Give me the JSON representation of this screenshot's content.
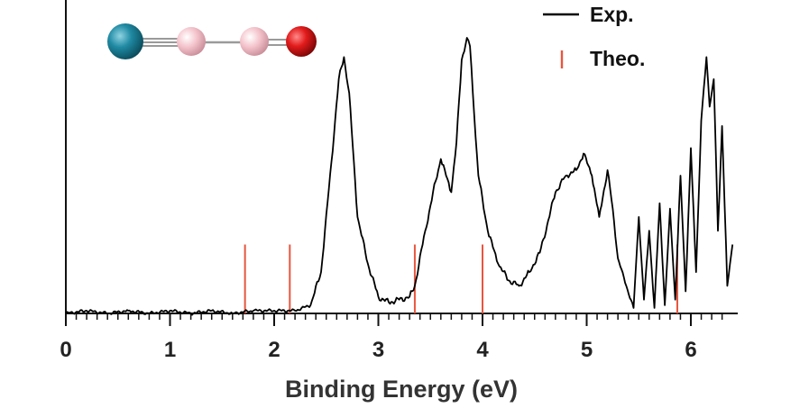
{
  "chart_data": {
    "type": "line",
    "xlabel": "Binding Energy (eV)",
    "ylabel": "",
    "xlim": [
      0,
      6.4
    ],
    "x_ticks": [
      "0",
      "1",
      "2",
      "3",
      "4",
      "5",
      "6"
    ],
    "grid": false,
    "legend_position": "top-right",
    "legend": [
      {
        "label": "Exp.",
        "marker": "line",
        "color": "#000000"
      },
      {
        "label": "Theo.",
        "marker": "stick",
        "color": "#e8553e"
      }
    ],
    "series": [
      {
        "name": "Exp.",
        "color": "#000000",
        "x": [
          0.0,
          0.2,
          0.4,
          0.6,
          0.8,
          1.0,
          1.2,
          1.4,
          1.6,
          1.8,
          2.0,
          2.2,
          2.35,
          2.45,
          2.55,
          2.62,
          2.67,
          2.72,
          2.8,
          2.9,
          3.0,
          3.1,
          3.2,
          3.3,
          3.35,
          3.45,
          3.55,
          3.6,
          3.65,
          3.7,
          3.75,
          3.8,
          3.85,
          3.88,
          3.92,
          3.96,
          4.05,
          4.15,
          4.25,
          4.35,
          4.45,
          4.55,
          4.62,
          4.7,
          4.8,
          4.9,
          4.97,
          5.05,
          5.12,
          5.2,
          5.25,
          5.3,
          5.38,
          5.45,
          5.5,
          5.55,
          5.6,
          5.65,
          5.7,
          5.75,
          5.8,
          5.85,
          5.9,
          5.95,
          6.0,
          6.05,
          6.1,
          6.15,
          6.18,
          6.22,
          6.26,
          6.3,
          6.35,
          6.4
        ],
        "values": [
          0.0,
          0.01,
          0.0,
          0.01,
          0.0,
          0.01,
          0.0,
          0.01,
          0.0,
          0.01,
          0.01,
          0.01,
          0.03,
          0.15,
          0.55,
          0.85,
          0.93,
          0.8,
          0.35,
          0.18,
          0.06,
          0.04,
          0.05,
          0.06,
          0.1,
          0.3,
          0.48,
          0.56,
          0.5,
          0.44,
          0.62,
          0.92,
          1.0,
          0.97,
          0.72,
          0.5,
          0.3,
          0.18,
          0.12,
          0.1,
          0.15,
          0.22,
          0.32,
          0.44,
          0.5,
          0.52,
          0.58,
          0.5,
          0.35,
          0.52,
          0.38,
          0.2,
          0.1,
          0.02,
          0.35,
          0.05,
          0.3,
          0.02,
          0.4,
          0.03,
          0.38,
          0.05,
          0.5,
          0.08,
          0.6,
          0.15,
          0.7,
          0.93,
          0.75,
          0.85,
          0.3,
          0.68,
          0.1,
          0.25
        ]
      },
      {
        "name": "Theo.",
        "color": "#e8553e",
        "x": [
          1.72,
          2.15,
          3.35,
          4.0,
          5.87
        ],
        "values": [
          0.25,
          0.25,
          0.25,
          0.25,
          0.25
        ]
      }
    ],
    "inset": {
      "description": "molecular structure: four atoms on a line",
      "atom_colors": [
        "#1f7f96",
        "#f2b7c1",
        "#f2b7c1",
        "#d41a1a"
      ]
    }
  }
}
